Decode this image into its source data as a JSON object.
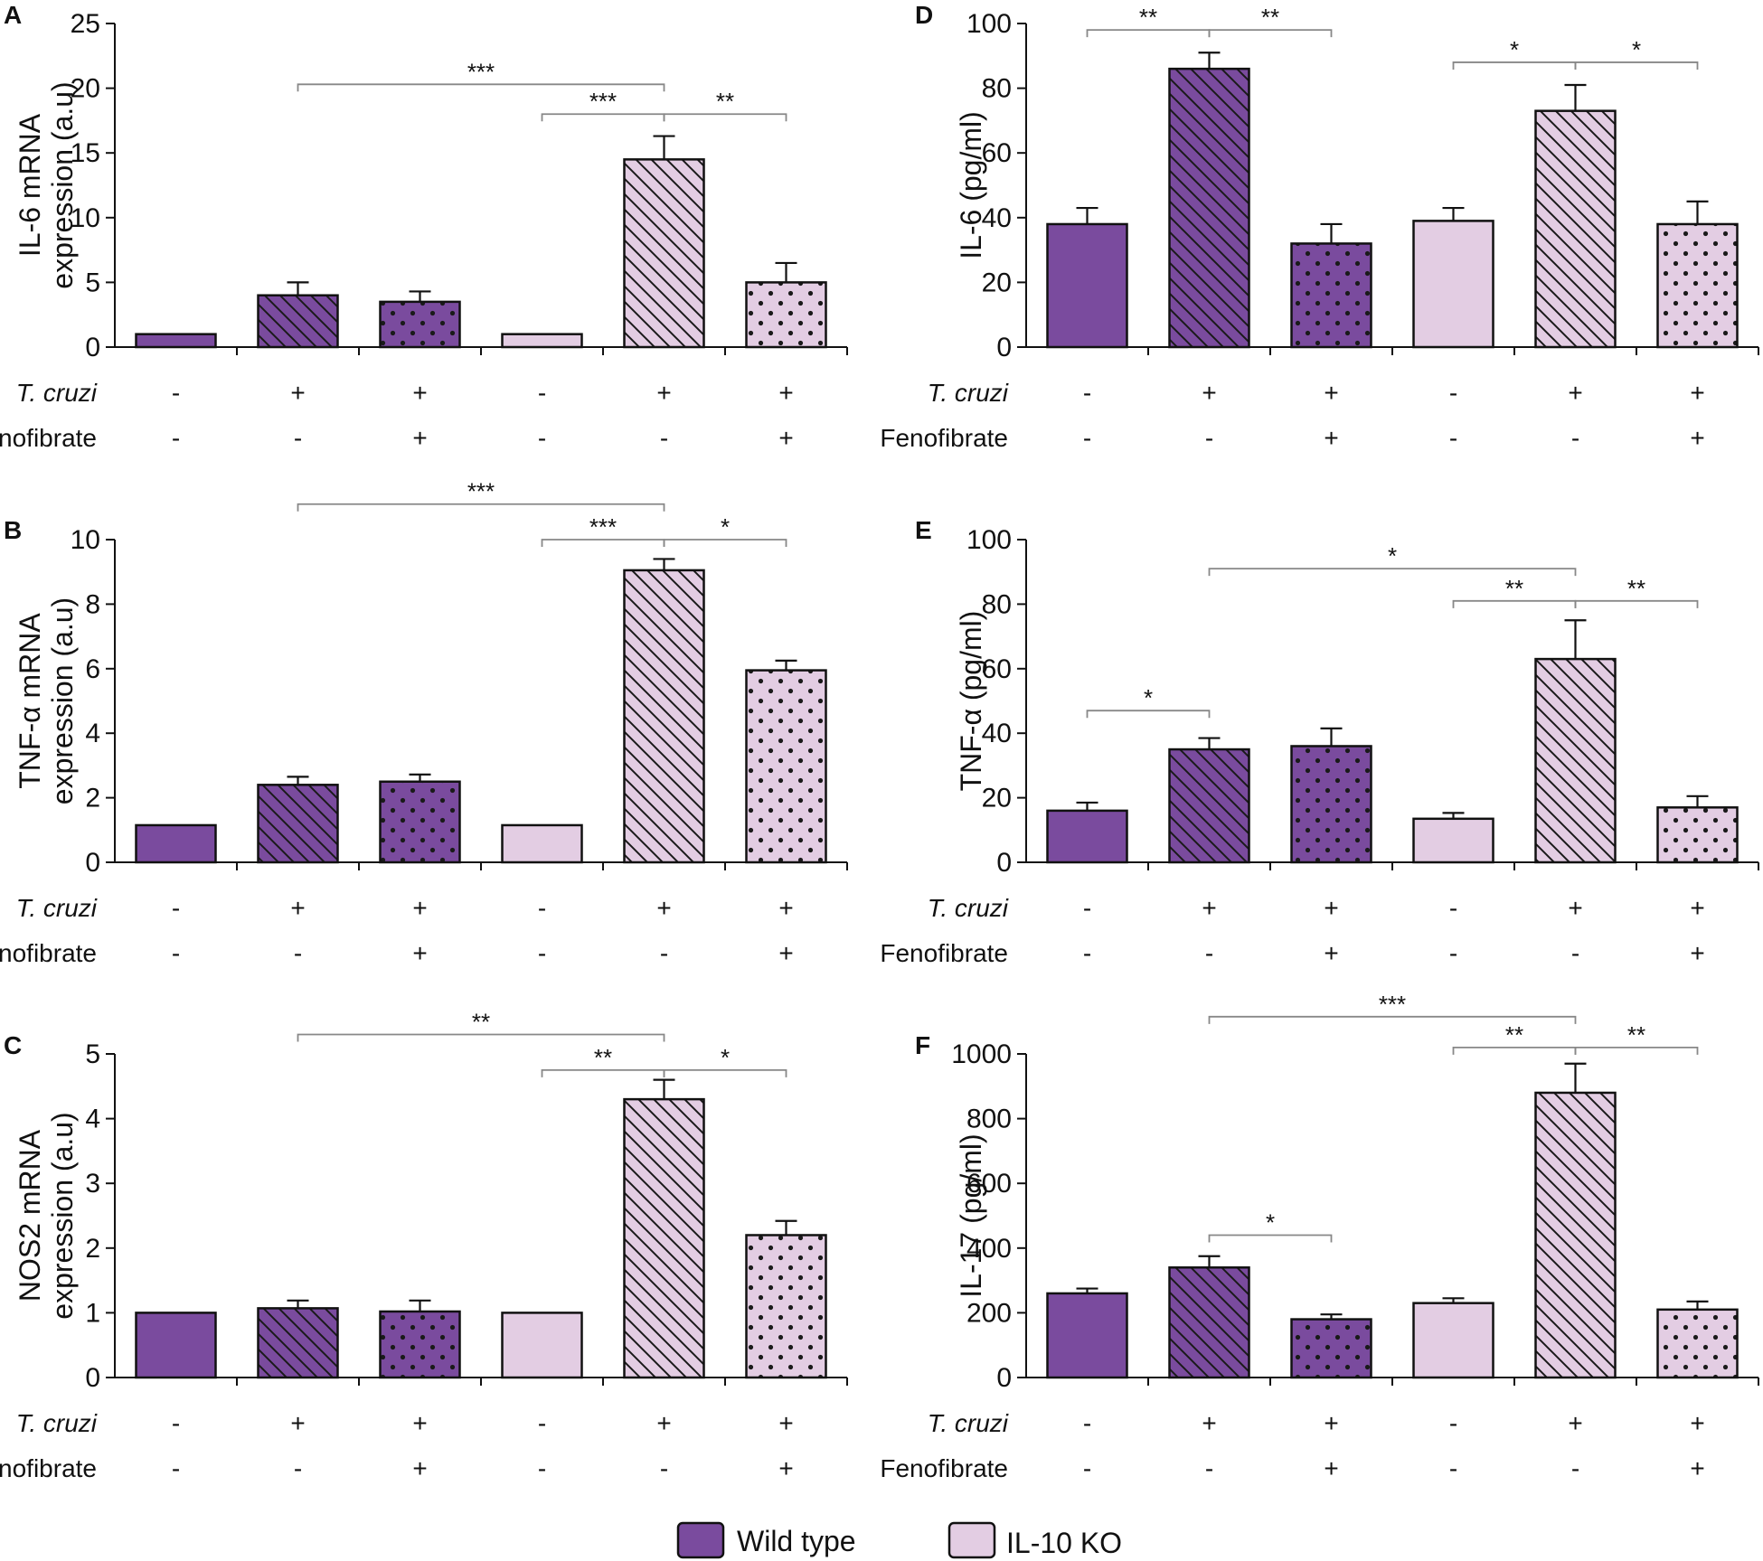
{
  "row_labels": {
    "tcruzi": "T. cruzi",
    "fenofibrate": "Fenofibrate"
  },
  "tcruzi_signs": [
    "-",
    "+",
    "+",
    "-",
    "+",
    "+"
  ],
  "fenofibrate_signs": [
    "-",
    "-",
    "+",
    "-",
    "-",
    "+"
  ],
  "legend": {
    "wt_label": "Wild type",
    "ko_label": "IL-10 KO"
  },
  "colors": {
    "wild_type": "#7a4b9e",
    "il10_ko": "#e3cde3",
    "stroke": "#111111",
    "bracket": "#888888"
  },
  "chart_data": [
    {
      "panel": "A",
      "type": "bar",
      "ylabel": [
        "IL-6 mRNA",
        "expression (a.u)"
      ],
      "ylim": [
        0,
        25
      ],
      "yticks": [
        0,
        5,
        10,
        15,
        20,
        25
      ],
      "series": [
        {
          "name": "Wild type",
          "values": [
            1.0,
            4.0,
            3.5
          ],
          "errors": [
            0,
            1.0,
            0.8
          ]
        },
        {
          "name": "IL-10 KO",
          "values": [
            1.0,
            14.5,
            5.0
          ],
          "errors": [
            0,
            1.8,
            1.5
          ]
        }
      ],
      "patterns": [
        "solid",
        "hatch",
        "dots",
        "solid",
        "hatch",
        "dots"
      ],
      "significance": [
        {
          "from": 1,
          "to": 4,
          "label": "***",
          "level": 20.3
        },
        {
          "from": 3,
          "to": 4,
          "label": "***",
          "level": 18.0
        },
        {
          "from": 4,
          "to": 5,
          "label": "**",
          "level": 18.0
        }
      ]
    },
    {
      "panel": "B",
      "type": "bar",
      "ylabel": [
        "TNF-α mRNA",
        "expression (a.u)"
      ],
      "ylim": [
        0,
        10
      ],
      "yticks": [
        0,
        2,
        4,
        6,
        8,
        10
      ],
      "series": [
        {
          "name": "Wild type",
          "values": [
            1.15,
            2.4,
            2.5
          ],
          "errors": [
            0,
            0.25,
            0.22
          ]
        },
        {
          "name": "IL-10 KO",
          "values": [
            1.15,
            9.05,
            5.95
          ],
          "errors": [
            0,
            0.35,
            0.3
          ]
        }
      ],
      "patterns": [
        "solid",
        "hatch",
        "dots",
        "solid",
        "hatch",
        "dots"
      ],
      "significance": [
        {
          "from": 1,
          "to": 4,
          "label": "***",
          "level": 11.1
        },
        {
          "from": 3,
          "to": 4,
          "label": "***",
          "level": 10.0
        },
        {
          "from": 4,
          "to": 5,
          "label": "*",
          "level": 10.0
        }
      ]
    },
    {
      "panel": "C",
      "type": "bar",
      "ylabel": [
        "NOS2 mRNA",
        "expression (a.u)"
      ],
      "ylim": [
        0,
        5
      ],
      "yticks": [
        0,
        1,
        2,
        3,
        4,
        5
      ],
      "series": [
        {
          "name": "Wild type",
          "values": [
            1.0,
            1.07,
            1.02
          ],
          "errors": [
            0,
            0.12,
            0.17
          ]
        },
        {
          "name": "IL-10 KO",
          "values": [
            1.0,
            4.3,
            2.2
          ],
          "errors": [
            0,
            0.3,
            0.22
          ]
        }
      ],
      "patterns": [
        "solid",
        "hatch",
        "dots",
        "solid",
        "hatch",
        "dots"
      ],
      "significance": [
        {
          "from": 1,
          "to": 4,
          "label": "**",
          "level": 5.3
        },
        {
          "from": 3,
          "to": 4,
          "label": "**",
          "level": 4.75
        },
        {
          "from": 4,
          "to": 5,
          "label": "*",
          "level": 4.75
        }
      ]
    },
    {
      "panel": "D",
      "type": "bar",
      "ylabel": [
        "IL-6 (pg/ml)"
      ],
      "ylim": [
        0,
        100
      ],
      "yticks": [
        0,
        20,
        40,
        60,
        80,
        100
      ],
      "series": [
        {
          "name": "Wild type",
          "values": [
            38,
            86,
            32
          ],
          "errors": [
            5,
            5,
            6
          ]
        },
        {
          "name": "IL-10 KO",
          "values": [
            39,
            73,
            38
          ],
          "errors": [
            4,
            8,
            7
          ]
        }
      ],
      "patterns": [
        "solid",
        "hatch",
        "dots",
        "solid",
        "hatch",
        "dots"
      ],
      "significance": [
        {
          "from": 0,
          "to": 1,
          "label": "**",
          "level": 98
        },
        {
          "from": 1,
          "to": 2,
          "label": "**",
          "level": 98
        },
        {
          "from": 3,
          "to": 4,
          "label": "*",
          "level": 88
        },
        {
          "from": 4,
          "to": 5,
          "label": "*",
          "level": 88
        }
      ]
    },
    {
      "panel": "E",
      "type": "bar",
      "ylabel": [
        "TNF-α (pg/ml)"
      ],
      "ylim": [
        0,
        100
      ],
      "yticks": [
        0,
        20,
        40,
        60,
        80,
        100
      ],
      "series": [
        {
          "name": "Wild type",
          "values": [
            16,
            35,
            36
          ],
          "errors": [
            2.5,
            3.5,
            5.5
          ]
        },
        {
          "name": "IL-10 KO",
          "values": [
            13.5,
            63,
            17
          ],
          "errors": [
            1.8,
            12,
            3.5
          ]
        }
      ],
      "patterns": [
        "solid",
        "hatch",
        "dots",
        "solid",
        "hatch",
        "dots"
      ],
      "significance": [
        {
          "from": 1,
          "to": 4,
          "label": "*",
          "level": 91
        },
        {
          "from": 3,
          "to": 4,
          "label": "**",
          "level": 81
        },
        {
          "from": 4,
          "to": 5,
          "label": "**",
          "level": 81
        },
        {
          "from": 0,
          "to": 1,
          "label": "*",
          "level": 47
        }
      ]
    },
    {
      "panel": "F",
      "type": "bar",
      "ylabel": [
        "IL-17 (pg/ml)"
      ],
      "ylim": [
        0,
        1000
      ],
      "yticks": [
        0,
        200,
        400,
        600,
        800,
        1000
      ],
      "series": [
        {
          "name": "Wild type",
          "values": [
            260,
            340,
            180
          ],
          "errors": [
            15,
            35,
            15
          ]
        },
        {
          "name": "IL-10 KO",
          "values": [
            230,
            880,
            210
          ],
          "errors": [
            15,
            90,
            25
          ]
        }
      ],
      "patterns": [
        "solid",
        "hatch",
        "dots",
        "solid",
        "hatch",
        "dots"
      ],
      "significance": [
        {
          "from": 1,
          "to": 4,
          "label": "***",
          "level": 1115
        },
        {
          "from": 3,
          "to": 4,
          "label": "**",
          "level": 1020
        },
        {
          "from": 4,
          "to": 5,
          "label": "**",
          "level": 1020
        },
        {
          "from": 1,
          "to": 2,
          "label": "*",
          "level": 440
        }
      ]
    }
  ]
}
